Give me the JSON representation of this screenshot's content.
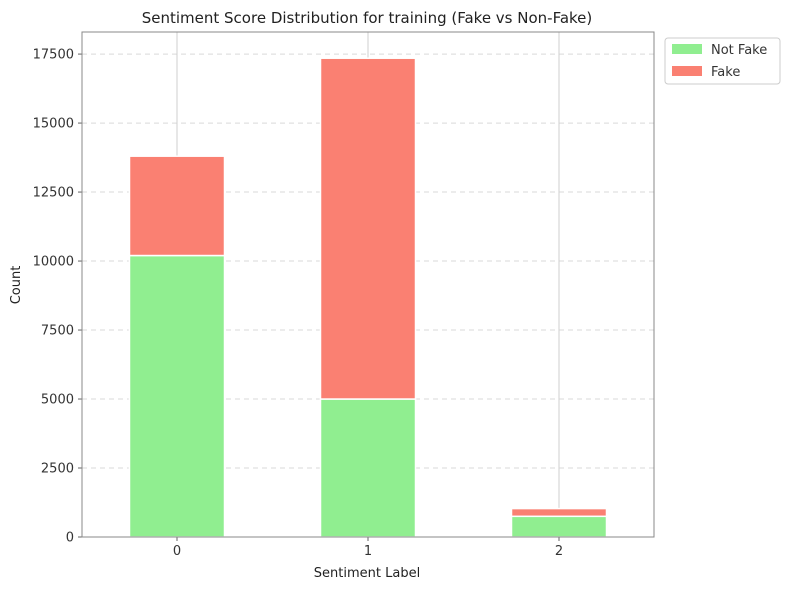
{
  "chart_data": {
    "type": "bar",
    "stacked": true,
    "title": "Sentiment Score Distribution for training (Fake vs Non-Fake)",
    "xlabel": "Sentiment Label",
    "ylabel": "Count",
    "categories": [
      "0",
      "1",
      "2"
    ],
    "series": [
      {
        "name": "Not Fake",
        "color": "#90ee90",
        "values": [
          10200,
          5000,
          750
        ]
      },
      {
        "name": "Fake",
        "color": "#fa8072",
        "values": [
          3600,
          12350,
          280
        ]
      }
    ],
    "ylim": [
      0,
      18300
    ],
    "yticks": [
      0,
      2500,
      5000,
      7500,
      10000,
      12500,
      15000,
      17500
    ],
    "ytick_labels": [
      "0",
      "2500",
      "5000",
      "7500",
      "10000",
      "12500",
      "15000",
      "17500"
    ],
    "grid": {
      "y": true,
      "y_style": "dashed",
      "x": true
    },
    "legend_position": "outside-top-right"
  }
}
